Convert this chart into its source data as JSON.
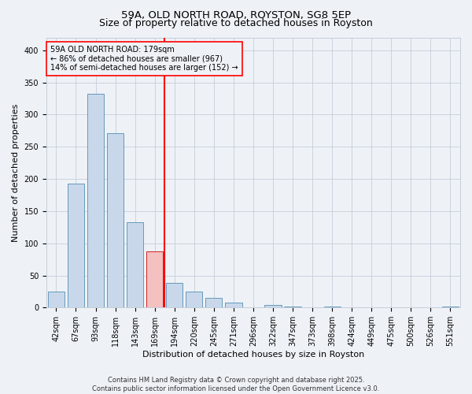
{
  "title1": "59A, OLD NORTH ROAD, ROYSTON, SG8 5EP",
  "title2": "Size of property relative to detached houses in Royston",
  "xlabel": "Distribution of detached houses by size in Royston",
  "ylabel": "Number of detached properties",
  "categories": [
    "42sqm",
    "67sqm",
    "93sqm",
    "118sqm",
    "143sqm",
    "169sqm",
    "194sqm",
    "220sqm",
    "245sqm",
    "271sqm",
    "296sqm",
    "322sqm",
    "347sqm",
    "373sqm",
    "398sqm",
    "424sqm",
    "449sqm",
    "475sqm",
    "500sqm",
    "526sqm",
    "551sqm"
  ],
  "values": [
    25,
    193,
    333,
    271,
    133,
    88,
    38,
    25,
    15,
    8,
    0,
    4,
    2,
    0,
    2,
    0,
    0,
    0,
    0,
    0,
    2
  ],
  "bar_color_normal": "#c8d8ea",
  "bar_edgecolor": "#6699bb",
  "highlight_bar_index": 5,
  "highlight_bar_color": "#f5c0c0",
  "highlight_bar_edgecolor": "#cc2222",
  "redline_x": 5.5,
  "annotation_text": "59A OLD NORTH ROAD: 179sqm\n← 86% of detached houses are smaller (967)\n14% of semi-detached houses are larger (152) →",
  "footer": "Contains HM Land Registry data © Crown copyright and database right 2025.\nContains public sector information licensed under the Open Government Licence v3.0.",
  "ylim": [
    0,
    420
  ],
  "yticks": [
    0,
    50,
    100,
    150,
    200,
    250,
    300,
    350,
    400
  ],
  "background_color": "#eef2f7",
  "grid_color": "#c5cdd8",
  "title_fontsize": 9.5,
  "subtitle_fontsize": 9,
  "axis_label_fontsize": 8,
  "tick_fontsize": 7,
  "annotation_fontsize": 7,
  "footer_fontsize": 6
}
